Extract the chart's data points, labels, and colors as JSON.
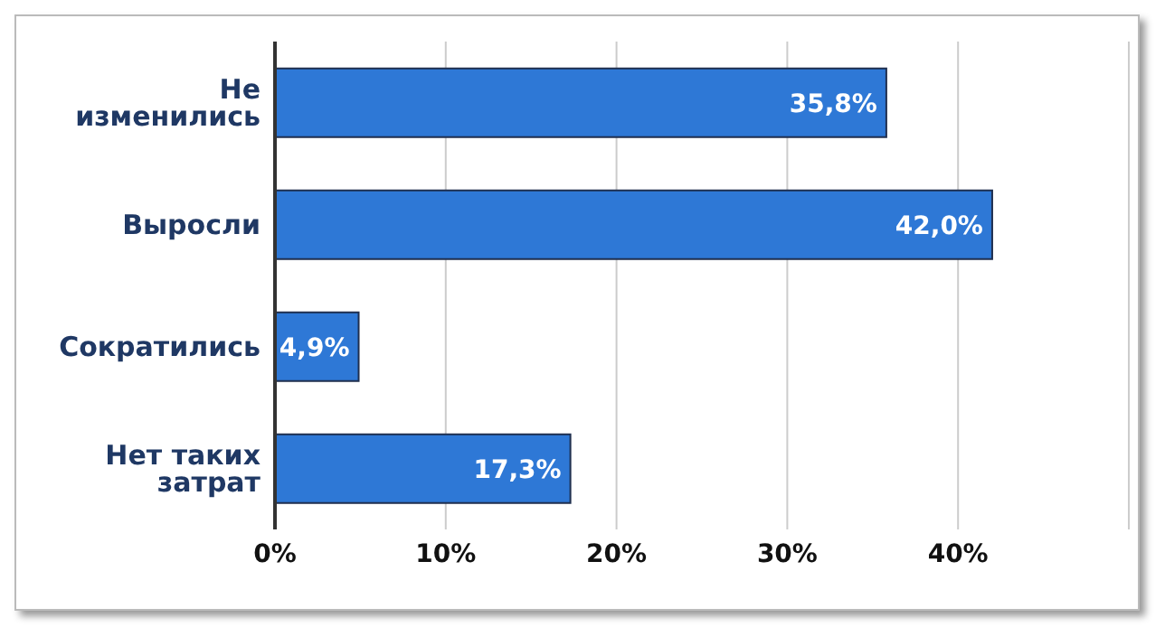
{
  "chart_data": {
    "type": "bar",
    "orientation": "horizontal",
    "categories": [
      "Не изменились",
      "Выросли",
      "Сократились",
      "Нет таких затрат"
    ],
    "values": [
      35.8,
      42.0,
      4.9,
      17.3
    ],
    "value_labels": [
      "35,8%",
      "42,0%",
      "4,9%",
      "17,3%"
    ],
    "color": "#2e78d6",
    "xlim": [
      0,
      50
    ],
    "xticks": [
      {
        "value": 0,
        "label": "0%"
      },
      {
        "value": 10,
        "label": "10%"
      },
      {
        "value": 20,
        "label": "20%"
      },
      {
        "value": 30,
        "label": "30%"
      },
      {
        "value": 40,
        "label": "40%"
      },
      {
        "value": 50,
        "label": null
      }
    ],
    "grid": "x",
    "legend": false
  }
}
